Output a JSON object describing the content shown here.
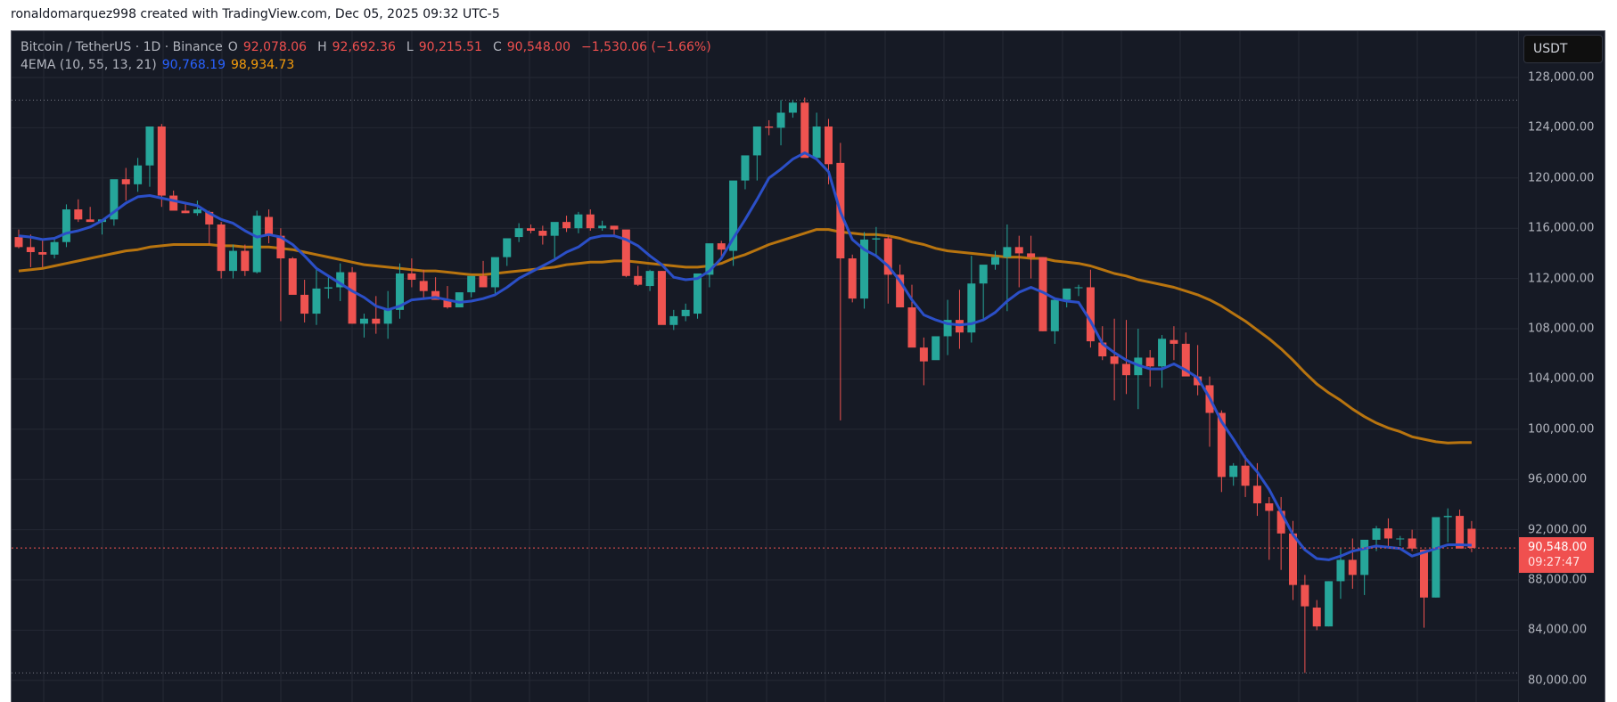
{
  "credit": "ronaldomarquez998 created with TradingView.com, Dec 05, 2025 09:32 UTC-5",
  "legend": {
    "symbol": "Bitcoin / TetherUS · 1D · Binance",
    "open_label": "O",
    "open": "92,078.06",
    "high_label": "H",
    "high": "92,692.36",
    "low_label": "L",
    "low": "90,215.51",
    "close_label": "C",
    "close": "90,548.00",
    "change": "−1,530.06 (−1.66%)",
    "indicator": "4EMA (10, 55, 13, 21)",
    "ema_fast_value": "90,768.19",
    "ema_slow_value": "98,934.73"
  },
  "axis": {
    "currency": "USDT",
    "ticks": [
      "128,000.00",
      "124,000.00",
      "120,000.00",
      "116,000.00",
      "112,000.00",
      "108,000.00",
      "104,000.00",
      "100,000.00",
      "96,000.00",
      "92,000.00",
      "88,000.00",
      "84,000.00",
      "80,000.00"
    ],
    "last_price": "90,548.00",
    "countdown": "09:27:47"
  },
  "colors": {
    "up": "#26a69a",
    "down": "#ef5350",
    "ema_fast": "#2b4fc7",
    "ema_slow": "#b8740f",
    "background": "#161a25",
    "grid": "#252935"
  },
  "chart_data": {
    "type": "candlestick",
    "title": "Bitcoin / TetherUS · 1D · Binance",
    "xlabel": "",
    "ylabel": "USDT",
    "ylim": [
      79000,
      129500
    ],
    "yticks": [
      80000,
      84000,
      88000,
      92000,
      96000,
      100000,
      104000,
      108000,
      112000,
      116000,
      120000,
      124000,
      128000
    ],
    "grid": true,
    "last_price": 90548.0,
    "reference_lines": {
      "high": 126200,
      "low": 80600
    },
    "ohlc": [
      [
        115300,
        115900,
        114400,
        114500
      ],
      [
        114500,
        115500,
        112900,
        114100
      ],
      [
        114100,
        115200,
        112900,
        113900
      ],
      [
        113900,
        115300,
        113600,
        114900
      ],
      [
        114900,
        117900,
        114500,
        117500
      ],
      [
        117500,
        118300,
        116500,
        116700
      ],
      [
        116700,
        117700,
        116600,
        116500
      ],
      [
        116500,
        116700,
        115500,
        116700
      ],
      [
        116700,
        119800,
        116200,
        119900
      ],
      [
        119900,
        120800,
        118200,
        119500
      ],
      [
        119500,
        121600,
        118900,
        121000
      ],
      [
        121000,
        124100,
        119300,
        124100
      ],
      [
        124100,
        124300,
        117700,
        118600
      ],
      [
        118600,
        119000,
        117600,
        117400
      ],
      [
        117400,
        117900,
        117200,
        117200
      ],
      [
        117200,
        118200,
        117000,
        117500
      ],
      [
        117300,
        117400,
        114700,
        116300
      ],
      [
        116300,
        116500,
        112000,
        112600
      ],
      [
        112600,
        114700,
        112000,
        114200
      ],
      [
        114200,
        114700,
        112200,
        112600
      ],
      [
        112500,
        117400,
        112400,
        117000
      ],
      [
        116900,
        117500,
        114800,
        115400
      ],
      [
        115400,
        116000,
        108600,
        113600
      ],
      [
        113600,
        113700,
        110800,
        110700
      ],
      [
        110700,
        111900,
        108500,
        109200
      ],
      [
        109200,
        112700,
        108300,
        111200
      ],
      [
        111200,
        112200,
        110400,
        111300
      ],
      [
        111300,
        113200,
        110200,
        112500
      ],
      [
        112500,
        112900,
        108400,
        108400
      ],
      [
        108400,
        109200,
        107300,
        108800
      ],
      [
        108800,
        110600,
        107600,
        108400
      ],
      [
        108400,
        111000,
        107200,
        109600
      ],
      [
        109500,
        113200,
        108800,
        112400
      ],
      [
        112400,
        113600,
        111300,
        111900
      ],
      [
        111800,
        112700,
        110300,
        111000
      ],
      [
        111000,
        112100,
        110600,
        110300
      ],
      [
        110300,
        111400,
        109600,
        109700
      ],
      [
        109700,
        110800,
        110200,
        110900
      ],
      [
        110900,
        112100,
        110500,
        112200
      ],
      [
        112200,
        113400,
        111300,
        111300
      ],
      [
        111300,
        113400,
        110600,
        113700
      ],
      [
        113700,
        114800,
        113000,
        115200
      ],
      [
        115300,
        116400,
        114900,
        116000
      ],
      [
        116000,
        116300,
        115600,
        115800
      ],
      [
        115800,
        116200,
        114700,
        115400
      ],
      [
        115400,
        116200,
        113500,
        116500
      ],
      [
        116500,
        117000,
        115700,
        116000
      ],
      [
        116000,
        117300,
        115600,
        117100
      ],
      [
        117100,
        117500,
        115800,
        116000
      ],
      [
        116000,
        116600,
        115800,
        116200
      ],
      [
        116200,
        116200,
        115400,
        115900
      ],
      [
        115900,
        115600,
        112100,
        112200
      ],
      [
        112200,
        113000,
        111400,
        111500
      ],
      [
        111400,
        112700,
        111000,
        112600
      ],
      [
        112600,
        112600,
        109900,
        108300
      ],
      [
        108300,
        109500,
        107900,
        109000
      ],
      [
        109000,
        110000,
        108600,
        109500
      ],
      [
        109200,
        111700,
        108800,
        112400
      ],
      [
        112300,
        114600,
        111300,
        114800
      ],
      [
        114800,
        115000,
        113500,
        114300
      ],
      [
        114200,
        117700,
        113000,
        119800
      ],
      [
        119800,
        121500,
        119100,
        121800
      ],
      [
        121800,
        124000,
        119800,
        124100
      ],
      [
        124100,
        124600,
        123400,
        124000
      ],
      [
        124000,
        126200,
        122600,
        125200
      ],
      [
        125200,
        126200,
        124800,
        126000
      ],
      [
        126000,
        126400,
        121700,
        121600
      ],
      [
        121600,
        125200,
        121500,
        124100
      ],
      [
        124100,
        124700,
        119500,
        121100
      ],
      [
        121200,
        122800,
        100700,
        113600
      ],
      [
        113600,
        113900,
        110100,
        110400
      ],
      [
        110400,
        115700,
        109600,
        115100
      ],
      [
        115100,
        116100,
        113800,
        115200
      ],
      [
        115200,
        115400,
        110000,
        112300
      ],
      [
        112300,
        113100,
        110900,
        109700
      ],
      [
        109700,
        111500,
        106900,
        106500
      ],
      [
        106500,
        107300,
        103500,
        105400
      ],
      [
        105500,
        107300,
        106500,
        107400
      ],
      [
        107400,
        110300,
        105900,
        108700
      ],
      [
        108700,
        111100,
        106400,
        107700
      ],
      [
        107700,
        113800,
        106900,
        111600
      ],
      [
        111600,
        112600,
        108800,
        113100
      ],
      [
        113100,
        114200,
        112700,
        113700
      ],
      [
        113700,
        116300,
        109400,
        114500
      ],
      [
        114500,
        115400,
        111300,
        114000
      ],
      [
        114000,
        115400,
        112000,
        113700
      ],
      [
        113700,
        113300,
        107800,
        107800
      ],
      [
        107800,
        110500,
        106800,
        110300
      ],
      [
        110300,
        110700,
        109700,
        111200
      ],
      [
        111300,
        111500,
        110600,
        111300
      ],
      [
        111300,
        112700,
        106500,
        107000
      ],
      [
        106900,
        108200,
        105500,
        105800
      ],
      [
        105800,
        108800,
        102300,
        105200
      ],
      [
        105200,
        108700,
        102800,
        104300
      ],
      [
        104300,
        108000,
        101600,
        105700
      ],
      [
        105700,
        106300,
        103400,
        105000
      ],
      [
        105000,
        107500,
        103300,
        107200
      ],
      [
        107100,
        108200,
        105500,
        106800
      ],
      [
        106800,
        107700,
        104400,
        104200
      ],
      [
        104200,
        106700,
        102700,
        103500
      ],
      [
        103500,
        104200,
        98600,
        101300
      ],
      [
        101300,
        101500,
        95000,
        96200
      ],
      [
        96200,
        97300,
        95500,
        97100
      ],
      [
        97100,
        97900,
        94600,
        95500
      ],
      [
        95500,
        97300,
        93100,
        94100
      ],
      [
        94100,
        94600,
        89600,
        93500
      ],
      [
        93500,
        94600,
        88800,
        91700
      ],
      [
        91700,
        92700,
        86400,
        87600
      ],
      [
        87600,
        88400,
        80600,
        85900
      ],
      [
        85800,
        86400,
        84000,
        84300
      ],
      [
        84300,
        87900,
        84300,
        87900
      ],
      [
        87900,
        90500,
        86500,
        89600
      ],
      [
        89600,
        91300,
        87300,
        88400
      ],
      [
        88400,
        91100,
        86800,
        91200
      ],
      [
        91200,
        92300,
        90300,
        92100
      ],
      [
        92100,
        92900,
        90500,
        91300
      ],
      [
        91300,
        91500,
        90700,
        91300
      ],
      [
        91300,
        92000,
        90300,
        90500
      ],
      [
        90400,
        90400,
        84200,
        86600
      ],
      [
        86600,
        91500,
        86600,
        93000
      ],
      [
        93000,
        93700,
        91000,
        93100
      ],
      [
        93100,
        93600,
        90900,
        90500
      ],
      [
        92078,
        92692,
        90215,
        90548
      ]
    ],
    "ema_fast": {
      "name": "EMA (fast)",
      "values": [
        115400,
        115300,
        115100,
        115200,
        115600,
        115800,
        116100,
        116600,
        117300,
        118000,
        118500,
        118600,
        118400,
        118200,
        118000,
        117800,
        117200,
        116700,
        116400,
        115800,
        115300,
        115500,
        115300,
        114700,
        113800,
        112800,
        112200,
        111600,
        111000,
        110500,
        109800,
        109500,
        109800,
        110300,
        110400,
        110500,
        110300,
        110100,
        110200,
        110400,
        110700,
        111300,
        112000,
        112500,
        113000,
        113500,
        114100,
        114500,
        115200,
        115400,
        115400,
        115100,
        114600,
        113800,
        113100,
        112100,
        111900,
        112000,
        112600,
        113600,
        115200,
        116700,
        118300,
        120000,
        120700,
        121500,
        122000,
        121500,
        120500,
        117300,
        115100,
        114300,
        113800,
        113000,
        111800,
        110300,
        109100,
        108700,
        108400,
        108300,
        108400,
        108700,
        109300,
        110200,
        110900,
        111300,
        110900,
        110400,
        110200,
        110100,
        108600,
        106800,
        106100,
        105500,
        105100,
        104800,
        104800,
        105200,
        104700,
        104100,
        102500,
        100600,
        99200,
        97700,
        96600,
        95200,
        93400,
        91600,
        90400,
        89700,
        89600,
        89900,
        90300,
        90500,
        90700,
        90600,
        90500,
        89900,
        90200,
        90500,
        90800,
        90800,
        90768
      ]
    },
    "ema_slow": {
      "name": "EMA (slow)",
      "values": [
        112600,
        112700,
        112800,
        113000,
        113200,
        113400,
        113600,
        113800,
        114000,
        114200,
        114300,
        114500,
        114600,
        114700,
        114700,
        114700,
        114700,
        114600,
        114600,
        114500,
        114500,
        114500,
        114400,
        114300,
        114100,
        113900,
        113700,
        113500,
        113300,
        113100,
        113000,
        112900,
        112800,
        112700,
        112600,
        112600,
        112500,
        112400,
        112300,
        112300,
        112400,
        112500,
        112600,
        112700,
        112800,
        112900,
        113100,
        113200,
        113300,
        113300,
        113400,
        113400,
        113300,
        113200,
        113100,
        113000,
        112900,
        112900,
        113000,
        113200,
        113600,
        113900,
        114300,
        114700,
        115000,
        115300,
        115600,
        115900,
        115900,
        115700,
        115600,
        115500,
        115500,
        115400,
        115200,
        114900,
        114700,
        114400,
        114200,
        114100,
        114000,
        113900,
        113800,
        113700,
        113700,
        113600,
        113600,
        113400,
        113300,
        113200,
        113000,
        112700,
        112400,
        112200,
        111900,
        111700,
        111500,
        111300,
        111000,
        110700,
        110300,
        109800,
        109200,
        108600,
        107900,
        107200,
        106400,
        105500,
        104500,
        103600,
        102900,
        102300,
        101600,
        101000,
        100500,
        100100,
        99800,
        99400,
        99200,
        99000,
        98900,
        98935,
        98935
      ]
    }
  }
}
